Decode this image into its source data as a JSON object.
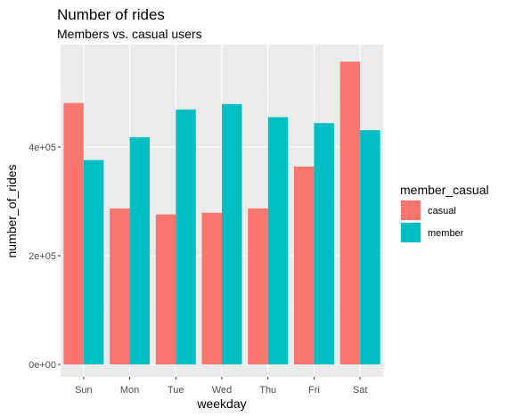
{
  "chart_data": {
    "type": "bar",
    "title": "Number of rides",
    "subtitle": "Members vs. casual users",
    "xlabel": "weekday",
    "ylabel": "number_of_rides",
    "categories": [
      "Sun",
      "Mon",
      "Tue",
      "Wed",
      "Thu",
      "Fri",
      "Sat"
    ],
    "series": [
      {
        "name": "casual",
        "color": "#F8766D",
        "values": [
          481000,
          287000,
          276000,
          279000,
          287000,
          364000,
          557000
        ]
      },
      {
        "name": "member",
        "color": "#00BFC4",
        "values": [
          376000,
          418000,
          469000,
          479000,
          455000,
          444000,
          431000
        ]
      }
    ],
    "ylim": [
      0,
      557000
    ],
    "yticks": [
      0,
      200000,
      400000
    ],
    "ytick_labels": [
      "0e+00",
      "2e+05",
      "4e+05"
    ],
    "legend": {
      "title": "member_casual",
      "placement": "right"
    },
    "grid": true,
    "panel_background": "#EBEBEB"
  }
}
